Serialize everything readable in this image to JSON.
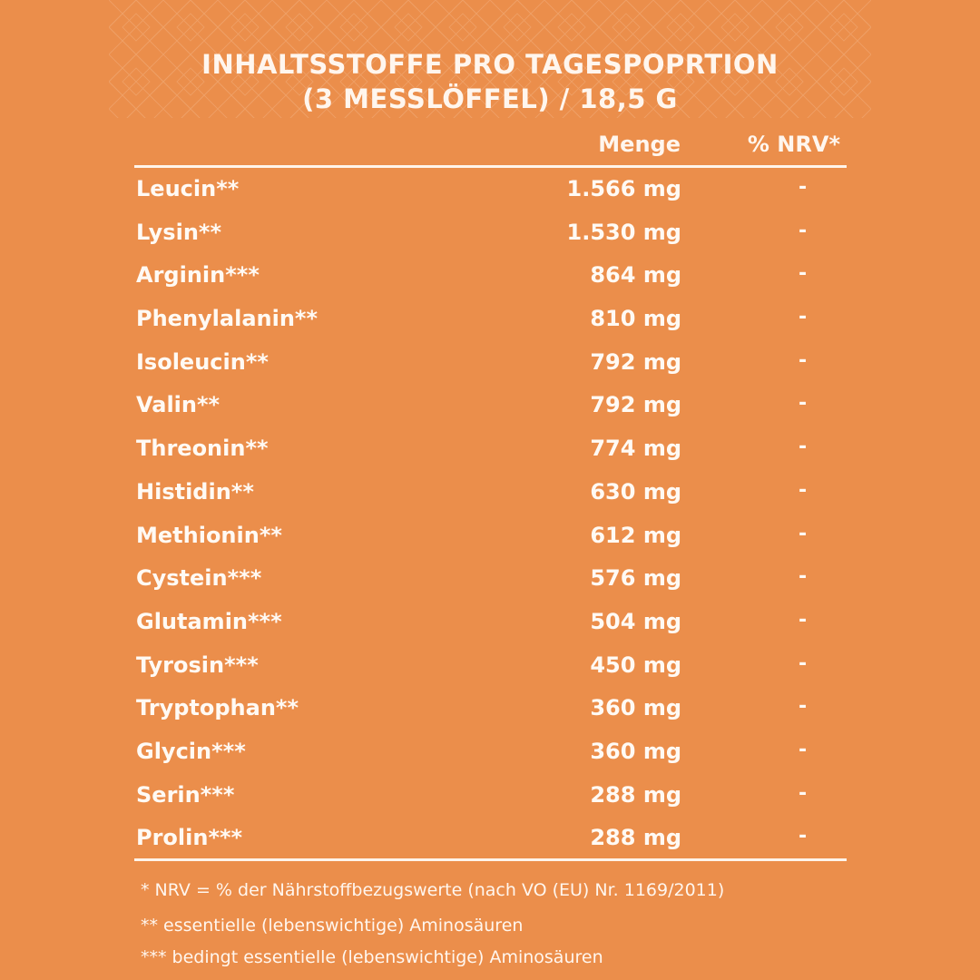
{
  "title": {
    "line1": "INHALTSSTOFFE PRO TAGESPOPRTION",
    "line2": "(3 MESSLÖFFEL) / 18,5 G"
  },
  "table": {
    "headers": {
      "amount": "Menge",
      "nrv": "% NRV*"
    },
    "rows": [
      {
        "name": "Leucin**",
        "amount": "1.566 mg",
        "nrv": "-"
      },
      {
        "name": "Lysin**",
        "amount": "1.530 mg",
        "nrv": "-"
      },
      {
        "name": "Arginin***",
        "amount": "864 mg",
        "nrv": "-"
      },
      {
        "name": "Phenylalanin**",
        "amount": "810 mg",
        "nrv": "-"
      },
      {
        "name": "Isoleucin**",
        "amount": "792 mg",
        "nrv": "-"
      },
      {
        "name": "Valin**",
        "amount": "792 mg",
        "nrv": "-"
      },
      {
        "name": "Threonin**",
        "amount": "774 mg",
        "nrv": "-"
      },
      {
        "name": "Histidin**",
        "amount": "630 mg",
        "nrv": "-"
      },
      {
        "name": "Methionin**",
        "amount": "612 mg",
        "nrv": "-"
      },
      {
        "name": "Cystein***",
        "amount": "576 mg",
        "nrv": "-"
      },
      {
        "name": "Glutamin***",
        "amount": "504 mg",
        "nrv": "-"
      },
      {
        "name": "Tyrosin***",
        "amount": "450 mg",
        "nrv": "-"
      },
      {
        "name": "Tryptophan**",
        "amount": "360 mg",
        "nrv": "-"
      },
      {
        "name": "Glycin***",
        "amount": "360 mg",
        "nrv": "-"
      },
      {
        "name": "Serin***",
        "amount": "288 mg",
        "nrv": "-"
      },
      {
        "name": "Prolin***",
        "amount": "288 mg",
        "nrv": "-"
      }
    ]
  },
  "footnotes": {
    "nrv": "* NRV =  % der Nährstoffbezugswerte (nach VO (EU) Nr. 1169/2011)",
    "essential": "**  essentielle (lebenswichtige) Aminosäuren",
    "conditional": "*** bedingt essentielle (lebenswichtige) Aminosäuren"
  },
  "colors": {
    "background": "#eb8e4b",
    "text": "#ffffff",
    "pattern": "#f6c9a0"
  }
}
